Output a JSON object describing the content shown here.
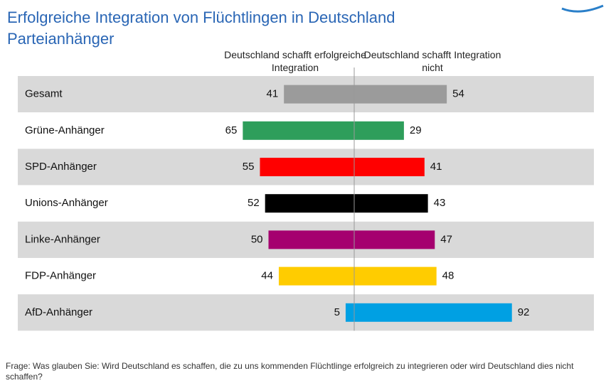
{
  "chart_data": {
    "type": "diverging_bar",
    "title": "Erfolgreiche Integration von Flüchtlingen in Deutschland",
    "subtitle": "Parteianhänger",
    "categories": [
      "Gesamt",
      "Grüne-Anhänger",
      "SPD-Anhänger",
      "Unions-Anhänger",
      "Linke-Anhänger",
      "FDP-Anhänger",
      "AfD-Anhänger"
    ],
    "colors": [
      "#9b9b9b",
      "#2e9e5b",
      "#ff0000",
      "#000000",
      "#a5006f",
      "#ffcc00",
      "#00a0e3"
    ],
    "series": [
      {
        "name": "Deutschland schafft erfolgreiche Integration",
        "side": "left",
        "values": [
          41,
          65,
          55,
          52,
          50,
          44,
          5
        ]
      },
      {
        "name": "Deutschland schafft Integration nicht",
        "side": "right",
        "values": [
          54,
          29,
          41,
          43,
          47,
          48,
          92
        ]
      }
    ],
    "note": "Frage: Was glauben Sie: Wird Deutschland es schaffen, die zu uns kommenden Flüchtlinge erfolgreich zu integrieren oder wird Deutschland dies nicht schaffen?"
  }
}
